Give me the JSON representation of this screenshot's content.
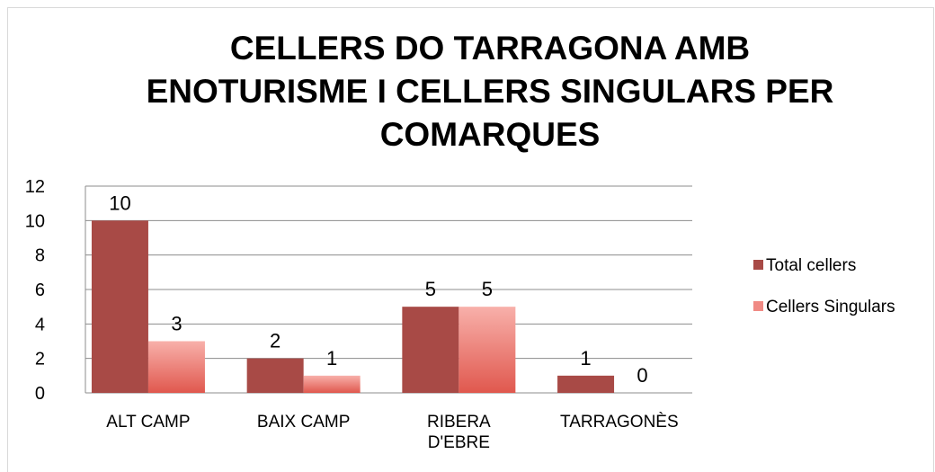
{
  "chart_data": {
    "type": "bar",
    "title": "CELLERS DO TARRAGONA AMB ENOTURISME I CELLERS SINGULARS PER COMARQUES",
    "categories": [
      "ALT CAMP",
      "BAIX CAMP",
      "RIBERA D'EBRE",
      "TARRAGONÈS"
    ],
    "series": [
      {
        "name": "Total cellers",
        "color": "#a84a46",
        "values": [
          10,
          2,
          5,
          1
        ]
      },
      {
        "name": "Cellers Singulars",
        "color": "#f08a84",
        "values": [
          3,
          1,
          5,
          0
        ]
      }
    ],
    "ylim": [
      0,
      12
    ],
    "yticks": [
      0,
      2,
      4,
      6,
      8,
      10,
      12
    ],
    "grid": true,
    "legend": "right"
  }
}
